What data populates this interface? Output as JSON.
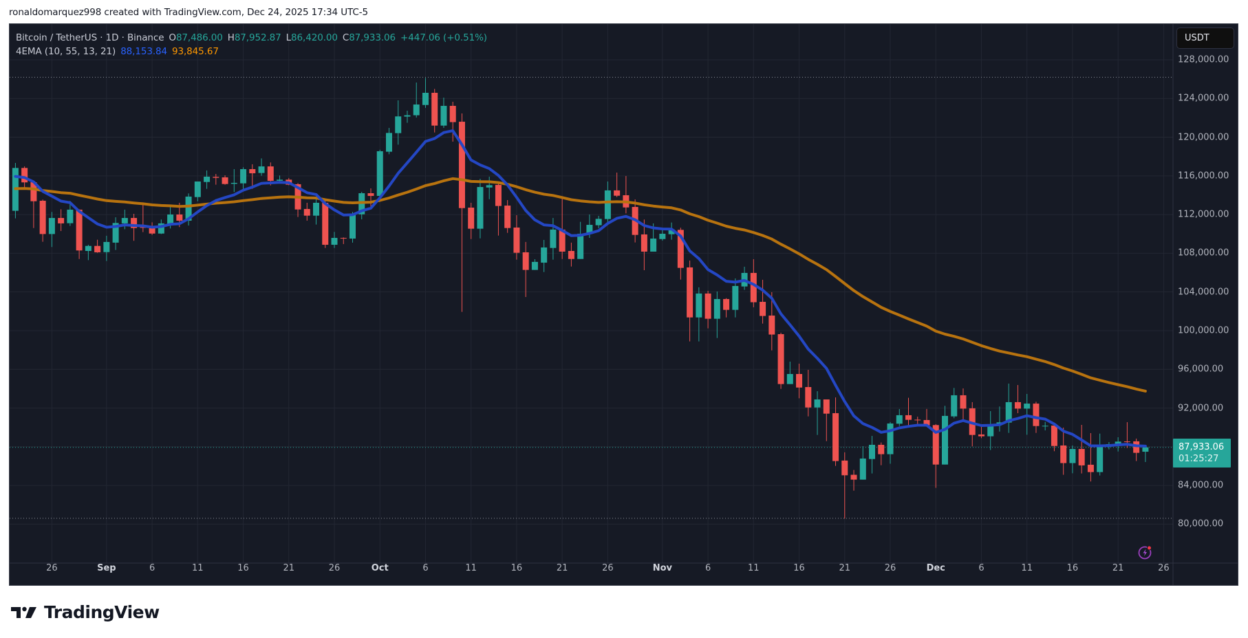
{
  "attribution": "ronaldomarquez998 created with TradingView.com, Dec 24, 2025 17:34 UTC-5",
  "legend": {
    "symbol": "Bitcoin / TetherUS · 1D · Binance",
    "open_label": "O",
    "open": "87,486.00",
    "high_label": "H",
    "high": "87,952.87",
    "low_label": "L",
    "low": "86,420.00",
    "close_label": "C",
    "close": "87,933.06",
    "change": "+447.06 (+0.51%)",
    "indicator": "4EMA (10, 55, 13, 21)",
    "ema_fast_value": "88,153.84",
    "ema_slow_value": "93,845.67"
  },
  "price_axis": {
    "currency_button": "USDT",
    "labels": [
      "128,000.00",
      "124,000.00",
      "120,000.00",
      "116,000.00",
      "112,000.00",
      "108,000.00",
      "104,000.00",
      "100,000.00",
      "96,000.00",
      "92,000.00",
      "84,000.00",
      "80,000.00"
    ],
    "current_price": "87,933.06",
    "countdown": "01:25:27"
  },
  "time_axis": {
    "labels": [
      {
        "text": "26",
        "i": 4,
        "month": false
      },
      {
        "text": "Sep",
        "i": 10,
        "month": true
      },
      {
        "text": "6",
        "i": 15,
        "month": false
      },
      {
        "text": "11",
        "i": 20,
        "month": false
      },
      {
        "text": "16",
        "i": 25,
        "month": false
      },
      {
        "text": "21",
        "i": 30,
        "month": false
      },
      {
        "text": "26",
        "i": 35,
        "month": false
      },
      {
        "text": "Oct",
        "i": 40,
        "month": true
      },
      {
        "text": "6",
        "i": 45,
        "month": false
      },
      {
        "text": "11",
        "i": 50,
        "month": false
      },
      {
        "text": "16",
        "i": 55,
        "month": false
      },
      {
        "text": "21",
        "i": 60,
        "month": false
      },
      {
        "text": "26",
        "i": 65,
        "month": false
      },
      {
        "text": "Nov",
        "i": 71,
        "month": true
      },
      {
        "text": "6",
        "i": 76,
        "month": false
      },
      {
        "text": "11",
        "i": 81,
        "month": false
      },
      {
        "text": "16",
        "i": 86,
        "month": false
      },
      {
        "text": "21",
        "i": 91,
        "month": false
      },
      {
        "text": "26",
        "i": 96,
        "month": false
      },
      {
        "text": "Dec",
        "i": 101,
        "month": true
      },
      {
        "text": "6",
        "i": 106,
        "month": false
      },
      {
        "text": "11",
        "i": 111,
        "month": false
      },
      {
        "text": "16",
        "i": 116,
        "month": false
      },
      {
        "text": "21",
        "i": 121,
        "month": false
      },
      {
        "text": "26",
        "i": 126,
        "month": false
      }
    ]
  },
  "colors": {
    "background": "#161a25",
    "grid": "#232733",
    "up": "#26a69a",
    "down": "#ef5350",
    "ema_fast_line": "#2447c4",
    "ema_slow_line": "#b8730f",
    "ema_fast_text": "#2962ff",
    "ema_slow_text": "#ff9800"
  },
  "branding": {
    "logo_text": "TradingView"
  },
  "chart_data": {
    "type": "candlestick",
    "title": "Bitcoin / TetherUS · 1D · Binance",
    "xlabel": "",
    "ylabel": "USDT",
    "ylim": [
      77000,
      130500
    ],
    "grid": true,
    "first_date": "2025-08-22",
    "last_date": "2025-12-24",
    "reference_lines": {
      "high_dotted": 126200,
      "low_dotted": 80600,
      "last_price": 87933.06
    },
    "indicators": [
      {
        "name": "EMA 10",
        "last": 88153.84,
        "color": "#2962ff",
        "seed": 115750
      },
      {
        "name": "EMA 55",
        "last": 93845.67,
        "color": "#ff9800",
        "seed": 114600
      }
    ],
    "columns": [
      "open",
      "high",
      "low",
      "close"
    ],
    "candles": [
      [
        112390,
        117340,
        111610,
        116820
      ],
      [
        116820,
        116980,
        114570,
        115330
      ],
      [
        115350,
        115520,
        110610,
        113380
      ],
      [
        113430,
        113550,
        109190,
        109990
      ],
      [
        109990,
        112270,
        108650,
        111650
      ],
      [
        111650,
        112550,
        110300,
        111090
      ],
      [
        111110,
        113410,
        110830,
        112510
      ],
      [
        112510,
        112550,
        107410,
        108290
      ],
      [
        108240,
        108880,
        107290,
        108760
      ],
      [
        108760,
        109400,
        108050,
        108100
      ],
      [
        108120,
        109810,
        107200,
        109170
      ],
      [
        109100,
        111720,
        108340,
        111130
      ],
      [
        111090,
        112510,
        110490,
        111650
      ],
      [
        111650,
        112080,
        109290,
        110610
      ],
      [
        110700,
        113260,
        110190,
        110660
      ],
      [
        110590,
        111200,
        109900,
        110040
      ],
      [
        110040,
        111490,
        109990,
        111090
      ],
      [
        111010,
        112840,
        110560,
        112010
      ],
      [
        112010,
        113220,
        110710,
        111370
      ],
      [
        111370,
        114190,
        110870,
        113860
      ],
      [
        113810,
        115420,
        113380,
        115420
      ],
      [
        115370,
        116560,
        114660,
        115920
      ],
      [
        115900,
        116200,
        115090,
        115800
      ],
      [
        115850,
        116060,
        115090,
        115160
      ],
      [
        115180,
        116700,
        114330,
        115280
      ],
      [
        115230,
        116890,
        114660,
        116700
      ],
      [
        116700,
        117200,
        114660,
        116270
      ],
      [
        116300,
        117810,
        116010,
        116980
      ],
      [
        116980,
        117390,
        115020,
        115490
      ],
      [
        115500,
        116040,
        115400,
        115610
      ],
      [
        115610,
        115780,
        115040,
        115090
      ],
      [
        115140,
        115250,
        111750,
        112530
      ],
      [
        112580,
        113220,
        111370,
        111890
      ],
      [
        111890,
        113830,
        110970,
        113220
      ],
      [
        113220,
        113430,
        108550,
        108880
      ],
      [
        108880,
        110210,
        108550,
        109590
      ],
      [
        109590,
        109640,
        108950,
        109570
      ],
      [
        109520,
        112270,
        109100,
        112080
      ],
      [
        112030,
        114350,
        111510,
        114210
      ],
      [
        114210,
        114710,
        112620,
        113930
      ],
      [
        113930,
        118700,
        113700,
        118550
      ],
      [
        118500,
        120960,
        118240,
        120440
      ],
      [
        120420,
        123810,
        119230,
        122150
      ],
      [
        122130,
        122740,
        121490,
        122270
      ],
      [
        122270,
        125650,
        122030,
        123380
      ],
      [
        123330,
        126130,
        123030,
        124590
      ],
      [
        124590,
        124990,
        120490,
        121200
      ],
      [
        121200,
        124090,
        120960,
        123240
      ],
      [
        123240,
        123660,
        119540,
        121560
      ],
      [
        121600,
        122460,
        101940,
        112670
      ],
      [
        112720,
        113220,
        109470,
        110540
      ],
      [
        110540,
        115700,
        109540,
        114850
      ],
      [
        114800,
        115920,
        113590,
        115040
      ],
      [
        115070,
        115400,
        109830,
        112890
      ],
      [
        112930,
        113500,
        110110,
        110610
      ],
      [
        110660,
        111940,
        107340,
        108050
      ],
      [
        108100,
        109170,
        103480,
        106280
      ],
      [
        106280,
        107390,
        106280,
        107110
      ],
      [
        107030,
        109380,
        106060,
        108600
      ],
      [
        108550,
        111650,
        107340,
        110450
      ],
      [
        110450,
        113900,
        107410,
        108170
      ],
      [
        108240,
        109100,
        106630,
        107410
      ],
      [
        107410,
        111250,
        107410,
        110020
      ],
      [
        110000,
        112010,
        109590,
        110940
      ],
      [
        110900,
        111870,
        110590,
        111560
      ],
      [
        111540,
        115420,
        111180,
        114500
      ],
      [
        114500,
        116340,
        113810,
        113950
      ],
      [
        114000,
        115990,
        112130,
        112740
      ],
      [
        112790,
        113570,
        109120,
        109900
      ],
      [
        109950,
        111490,
        106250,
        108170
      ],
      [
        108170,
        111090,
        108170,
        109520
      ],
      [
        109470,
        110540,
        109310,
        110020
      ],
      [
        109970,
        111180,
        109400,
        110470
      ],
      [
        110420,
        110640,
        105280,
        106490
      ],
      [
        106540,
        107250,
        98890,
        101370
      ],
      [
        101370,
        104480,
        98890,
        103840
      ],
      [
        103840,
        104120,
        100240,
        101230
      ],
      [
        101230,
        104050,
        99240,
        103270
      ],
      [
        103270,
        103360,
        101370,
        102150
      ],
      [
        102150,
        105400,
        101370,
        104620
      ],
      [
        104570,
        106610,
        104220,
        105970
      ],
      [
        105970,
        107390,
        102420,
        102940
      ],
      [
        102980,
        105260,
        100730,
        101520
      ],
      [
        101560,
        103980,
        97960,
        99600
      ],
      [
        99640,
        99790,
        93980,
        94480
      ],
      [
        94480,
        96800,
        94480,
        95520
      ],
      [
        95520,
        96590,
        93010,
        94120
      ],
      [
        94170,
        95950,
        91140,
        92060
      ],
      [
        92060,
        93740,
        89220,
        92890
      ],
      [
        92890,
        92890,
        88580,
        91420
      ],
      [
        91470,
        93100,
        86020,
        86520
      ],
      [
        86570,
        87420,
        80570,
        85050
      ],
      [
        85100,
        85600,
        83460,
        84600
      ],
      [
        84600,
        88060,
        84600,
        86780
      ],
      [
        86730,
        89120,
        85240,
        88200
      ],
      [
        88200,
        88440,
        86090,
        87230
      ],
      [
        87230,
        90550,
        86240,
        90400
      ],
      [
        90380,
        91900,
        90140,
        91260
      ],
      [
        91260,
        93060,
        90140,
        90780
      ],
      [
        90800,
        91110,
        90100,
        90780
      ],
      [
        90760,
        91900,
        90210,
        90210
      ],
      [
        90240,
        90330,
        83750,
        86160
      ],
      [
        86160,
        92230,
        86160,
        91190
      ],
      [
        91140,
        94080,
        90950,
        93320
      ],
      [
        93320,
        94030,
        90710,
        91940
      ],
      [
        91970,
        92610,
        88040,
        89220
      ],
      [
        89270,
        90170,
        88890,
        89080
      ],
      [
        89080,
        91680,
        87660,
        90330
      ],
      [
        90260,
        92160,
        89570,
        90520
      ],
      [
        90500,
        94530,
        89430,
        92610
      ],
      [
        92610,
        94380,
        91470,
        91940
      ],
      [
        91940,
        93460,
        89240,
        92460
      ],
      [
        92460,
        92650,
        89430,
        90140
      ],
      [
        90150,
        90570,
        89690,
        90170
      ],
      [
        90190,
        90360,
        87540,
        88080
      ],
      [
        88130,
        89980,
        85100,
        86310
      ],
      [
        86310,
        88130,
        85260,
        87770
      ],
      [
        87770,
        90260,
        85240,
        86070
      ],
      [
        86140,
        89410,
        84410,
        85380
      ],
      [
        85380,
        89360,
        85030,
        88080
      ],
      [
        88010,
        88480,
        87730,
        88270
      ],
      [
        88200,
        88980,
        87510,
        88530
      ],
      [
        88550,
        90540,
        87870,
        88530
      ],
      [
        88560,
        88840,
        86520,
        87370
      ],
      [
        87486,
        87952.87,
        86420,
        87933.06
      ]
    ]
  }
}
